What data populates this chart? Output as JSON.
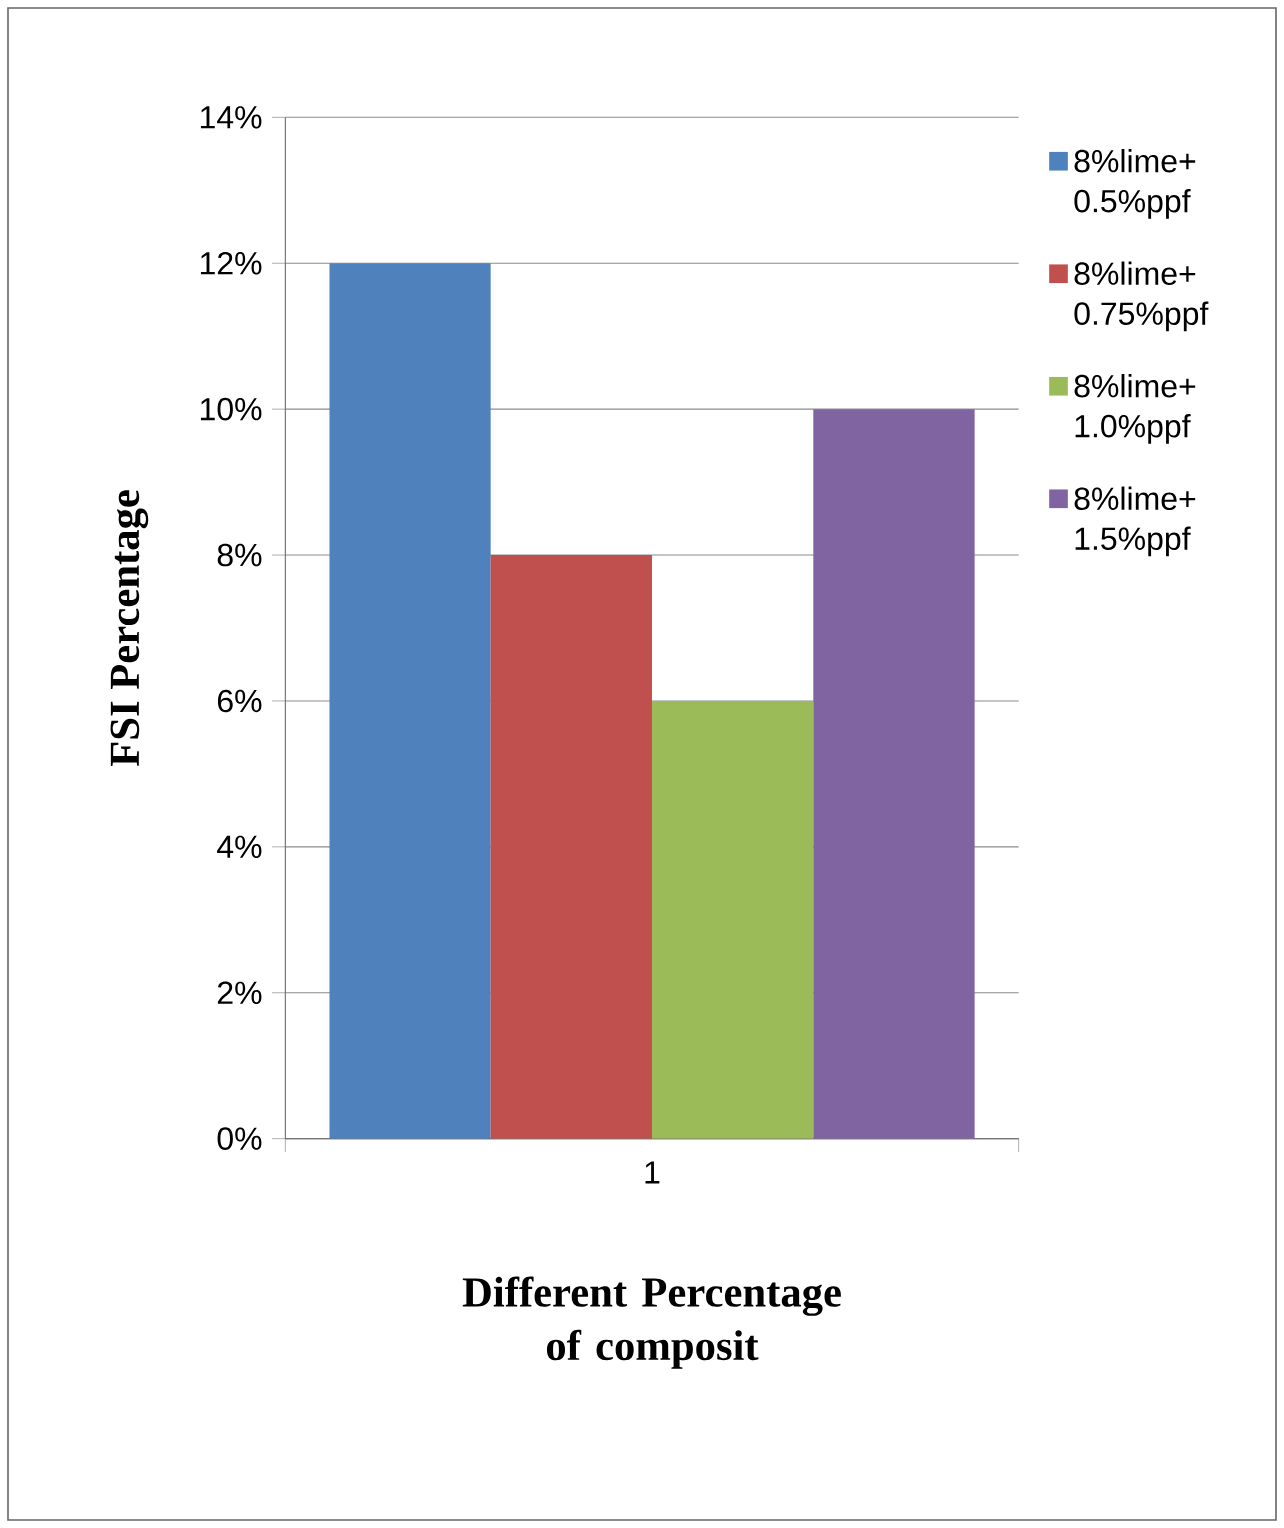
{
  "chart_data": {
    "type": "bar",
    "xlabel": "Different Percentage of composit",
    "ylabel": "FSI Percentage",
    "categories": [
      "1"
    ],
    "series": [
      {
        "name": "8%lime+ 0.5%ppf",
        "color": "#4f81bd",
        "values": [
          12
        ]
      },
      {
        "name": "8%lime+ 0.75%ppf",
        "color": "#c0504d",
        "values": [
          8
        ]
      },
      {
        "name": "8%lime+ 1.0%ppf",
        "color": "#9bbb59",
        "values": [
          6
        ]
      },
      {
        "name": "8%lime+ 1.5%ppf",
        "color": "#8064a2",
        "values": [
          10
        ]
      }
    ],
    "ylim": [
      0,
      14
    ],
    "yticks": [
      {
        "value": 0,
        "label": "0%"
      },
      {
        "value": 2,
        "label": "2%"
      },
      {
        "value": 4,
        "label": "4%"
      },
      {
        "value": 6,
        "label": "6%"
      },
      {
        "value": 8,
        "label": "8%"
      },
      {
        "value": 10,
        "label": "10%"
      },
      {
        "value": 12,
        "label": "12%"
      },
      {
        "value": 14,
        "label": "14%"
      }
    ],
    "grid": "y",
    "legend": "right"
  }
}
